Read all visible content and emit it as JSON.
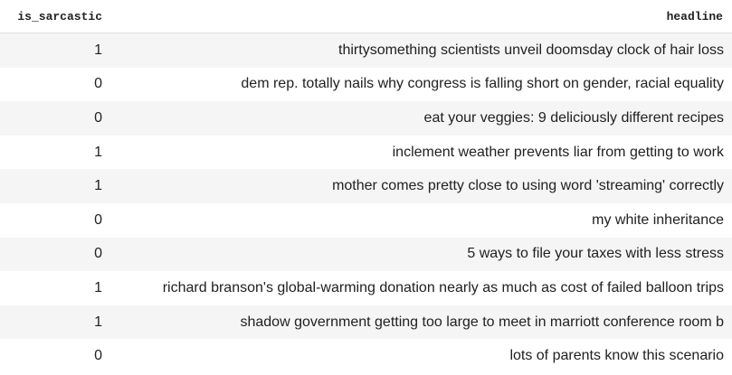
{
  "table": {
    "columns": [
      "is_sarcastic",
      "headline"
    ],
    "rows": [
      {
        "is_sarcastic": "1",
        "headline": "thirtysomething scientists unveil doomsday clock of hair loss"
      },
      {
        "is_sarcastic": "0",
        "headline": "dem rep. totally nails why congress is falling short on gender, racial equality"
      },
      {
        "is_sarcastic": "0",
        "headline": "eat your veggies: 9 deliciously different recipes"
      },
      {
        "is_sarcastic": "1",
        "headline": "inclement weather prevents liar from getting to work"
      },
      {
        "is_sarcastic": "1",
        "headline": "mother comes pretty close to using word 'streaming' correctly"
      },
      {
        "is_sarcastic": "0",
        "headline": "my white inheritance"
      },
      {
        "is_sarcastic": "0",
        "headline": "5 ways to file your taxes with less stress"
      },
      {
        "is_sarcastic": "1",
        "headline": "richard branson's global-warming donation nearly as much as cost of failed balloon trips"
      },
      {
        "is_sarcastic": "1",
        "headline": "shadow government getting too large to meet in marriott conference room b"
      },
      {
        "is_sarcastic": "0",
        "headline": "lots of parents know this scenario"
      }
    ]
  }
}
